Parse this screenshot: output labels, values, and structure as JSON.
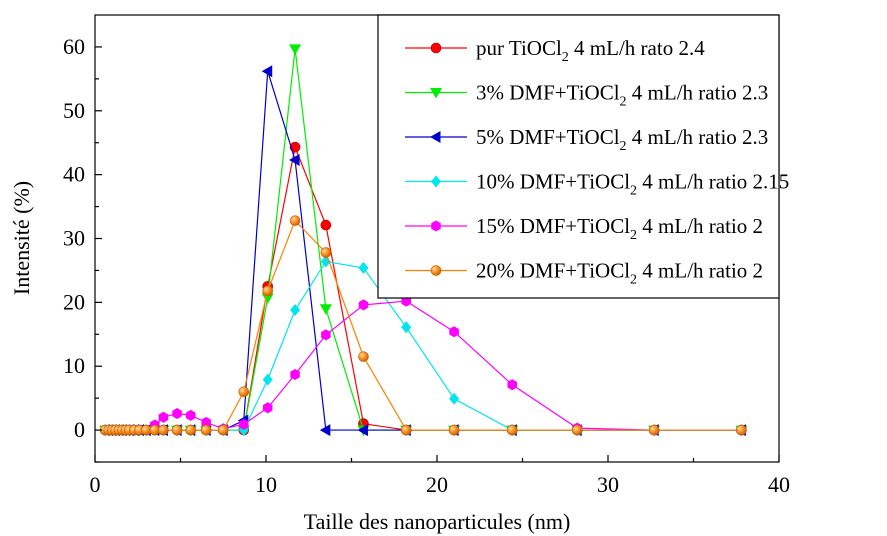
{
  "chart_data": {
    "type": "line",
    "title": "",
    "xlabel": "Taille des nanoparticules  (nm)",
    "ylabel": "Intensité (%)",
    "xlim": [
      0,
      40
    ],
    "ylim": [
      -5,
      65
    ],
    "xticks": [
      0,
      10,
      20,
      30,
      40
    ],
    "yticks": [
      0,
      10,
      20,
      30,
      40,
      50,
      60
    ],
    "grid": false,
    "legend": "top-right",
    "series": [
      {
        "label_pre": "pur TiOCl",
        "label_sub": "2",
        "label_post": " 4 mL/h rato 2.4",
        "color": "#ff0000",
        "marker": "circle",
        "x": [
          0.6,
          0.8,
          1.0,
          1.2,
          1.4,
          1.6,
          1.8,
          2.0,
          2.3,
          2.6,
          3.0,
          3.5,
          4.0,
          4.8,
          5.6,
          6.5,
          7.5,
          8.7,
          10.1,
          11.7,
          13.5,
          15.7,
          18.2,
          21.0,
          24.4,
          28.2,
          32.7,
          37.8
        ],
        "y": [
          0,
          0,
          0,
          0,
          0,
          0,
          0,
          0,
          0,
          0,
          0,
          0,
          0,
          0,
          0,
          0,
          0,
          0,
          22.5,
          44.3,
          32.1,
          1.0,
          0,
          0,
          0,
          0,
          0,
          0
        ]
      },
      {
        "label_pre": "3% DMF+TiOCl",
        "label_sub": "2",
        "label_post": " 4 mL/h ratio 2.3",
        "color": "#00ee00",
        "marker": "triangle-down",
        "x": [
          0.6,
          0.8,
          1.0,
          1.2,
          1.4,
          1.6,
          1.8,
          2.0,
          2.3,
          2.6,
          3.0,
          3.5,
          4.0,
          4.8,
          5.6,
          6.5,
          7.5,
          8.7,
          10.1,
          11.7,
          13.5,
          15.7,
          18.2,
          21.0,
          24.4,
          28.2,
          32.7,
          37.8
        ],
        "y": [
          0,
          0,
          0,
          0,
          0,
          0,
          0,
          0,
          0,
          0,
          0,
          0,
          0,
          0,
          0,
          0,
          0,
          0,
          20.7,
          59.7,
          19.0,
          0,
          0,
          0,
          0,
          0,
          0,
          0
        ]
      },
      {
        "label_pre": "5% DMF+TiOCl",
        "label_sub": "2",
        "label_post": " 4 mL/h ratio 2.3",
        "color": "#0000cc",
        "marker": "triangle-left",
        "x": [
          0.6,
          0.8,
          1.0,
          1.2,
          1.4,
          1.6,
          1.8,
          2.0,
          2.3,
          2.6,
          3.0,
          3.5,
          4.0,
          4.8,
          5.6,
          6.5,
          7.5,
          8.7,
          10.1,
          11.7,
          13.5,
          15.7,
          18.2,
          21.0,
          24.4,
          28.2,
          32.7,
          37.8
        ],
        "y": [
          0,
          0,
          0,
          0,
          0,
          0,
          0,
          0,
          0,
          0,
          0,
          0,
          0,
          0,
          0,
          0,
          0,
          1.5,
          56.2,
          42.3,
          0,
          0,
          0,
          0,
          0,
          0,
          0,
          0
        ]
      },
      {
        "label_pre": "10% DMF+TiOCl",
        "label_sub": "2",
        "label_post": " 4 mL/h ratio 2.15",
        "color": "#00e5ee",
        "marker": "diamond",
        "x": [
          0.6,
          0.8,
          1.0,
          1.2,
          1.4,
          1.6,
          1.8,
          2.0,
          2.3,
          2.6,
          3.0,
          3.5,
          4.0,
          4.8,
          5.6,
          6.5,
          7.5,
          8.7,
          10.1,
          11.7,
          13.5,
          15.7,
          18.2,
          21.0,
          24.4,
          28.2,
          32.7,
          37.8
        ],
        "y": [
          0,
          0,
          0,
          0,
          0,
          0,
          0,
          0,
          0,
          0,
          0,
          0,
          0,
          0,
          0,
          0,
          0,
          0,
          7.9,
          18.8,
          26.4,
          25.4,
          16.1,
          4.9,
          0,
          0,
          0,
          0
        ]
      },
      {
        "label_pre": "15% DMF+TiOCl",
        "label_sub": "2",
        "label_post": " 4 mL/h ratio 2",
        "color": "#ff00ff",
        "marker": "hexagon",
        "x": [
          0.6,
          0.8,
          1.0,
          1.2,
          1.4,
          1.6,
          1.8,
          2.0,
          2.3,
          2.6,
          3.0,
          3.5,
          4.0,
          4.8,
          5.6,
          6.5,
          7.5,
          8.7,
          10.1,
          11.7,
          13.5,
          15.7,
          18.2,
          21.0,
          24.4,
          28.2,
          32.7,
          37.8
        ],
        "y": [
          0,
          0,
          0,
          0,
          0,
          0,
          0,
          0,
          0,
          0,
          0,
          0.8,
          2.0,
          2.6,
          2.3,
          1.2,
          0.2,
          0.9,
          3.5,
          8.7,
          14.9,
          19.6,
          20.2,
          15.4,
          7.1,
          0.3,
          0,
          0
        ]
      },
      {
        "label_pre": "20% DMF+TiOCl",
        "label_sub": "2",
        "label_post": " 4 mL/h ratio 2",
        "color": "#ff8000",
        "marker": "sphere",
        "x": [
          0.6,
          0.8,
          1.0,
          1.2,
          1.4,
          1.6,
          1.8,
          2.0,
          2.3,
          2.6,
          3.0,
          3.5,
          4.0,
          4.8,
          5.6,
          6.5,
          7.5,
          8.7,
          10.1,
          11.7,
          13.5,
          15.7,
          18.2,
          21.0,
          24.4,
          28.2,
          32.7,
          37.8
        ],
        "y": [
          0,
          0,
          0,
          0,
          0,
          0,
          0,
          0,
          0,
          0,
          0,
          0,
          0,
          0,
          0,
          0,
          0,
          6.0,
          21.8,
          32.8,
          27.8,
          11.5,
          0,
          0,
          0,
          0,
          0,
          0
        ]
      }
    ]
  }
}
